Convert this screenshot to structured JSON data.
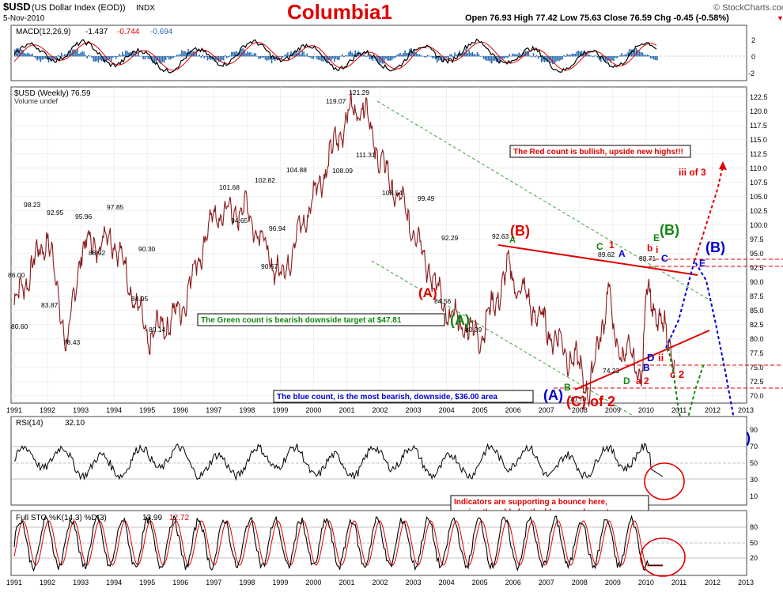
{
  "header": {
    "symbol": "$USD",
    "name": "(US Dollar Index (EOD))",
    "exchange": "INDX",
    "date": "5-Nov-2010",
    "title": "Columbia1",
    "ohlc": "Open 76.93  High 77.42  Low 75.63  Close 76.59  Chg -0.45 (-0.58%)",
    "watermark": "© StockCharts.com"
  },
  "macd": {
    "label": "MACD(12,26,9)",
    "v1": "-1.437",
    "v2": "-0.744",
    "v3": "-0.694",
    "ticks": [
      "2",
      "0",
      "-2"
    ]
  },
  "price": {
    "label": "$USD (Weekly) 76.59",
    "volume_label": "Volume undef",
    "y_ticks": [
      "122.5",
      "120.0",
      "117.5",
      "115.0",
      "112.5",
      "110.0",
      "107.5",
      "105.0",
      "102.5",
      "100.0",
      "97.5",
      "95.0",
      "92.5",
      "90.0",
      "87.5",
      "85.0",
      "82.5",
      "80.0",
      "77.5",
      "75.0",
      "72.5",
      "70.0"
    ],
    "point_labels": [
      {
        "t": "98.23"
      },
      {
        "t": "92.95"
      },
      {
        "t": "95.96"
      },
      {
        "t": "97.85"
      },
      {
        "t": "86.00"
      },
      {
        "t": "88.92"
      },
      {
        "t": "90.30"
      },
      {
        "t": "83.87"
      },
      {
        "t": "80.60"
      },
      {
        "t": "78.43"
      },
      {
        "t": "84.95"
      },
      {
        "t": "80.14"
      },
      {
        "t": "101.68"
      },
      {
        "t": "94.65"
      },
      {
        "t": "102.82"
      },
      {
        "t": "90.57"
      },
      {
        "t": "104.88"
      },
      {
        "t": "96.94"
      },
      {
        "t": "119.07"
      },
      {
        "t": "121.29"
      },
      {
        "t": "108.09"
      },
      {
        "t": "111.31"
      },
      {
        "t": "103.54"
      },
      {
        "t": "99.49"
      },
      {
        "t": "92.29"
      },
      {
        "t": "84.56"
      },
      {
        "t": "92.63"
      },
      {
        "t": "80.39"
      },
      {
        "t": "89.62"
      },
      {
        "t": "88.71"
      },
      {
        "t": "74.23"
      },
      {
        "t": "70.70"
      }
    ]
  },
  "annotations": {
    "red_box": "The Red count is bullish, upside new highs!!!",
    "green_box": "The Green count is bearish downside target at $47.81",
    "blue_box": "The blue count, is the most bearish, downside, $36.00 area",
    "indicator_box_1": "Indicators are supporting a bounce here,",
    "indicator_box_2": "upping the odds for the blue or red count",
    "waves": [
      {
        "t": "(B)"
      },
      {
        "t": "(A)"
      },
      {
        "t": "(A)"
      },
      {
        "t": "A"
      },
      {
        "t": "C"
      },
      {
        "t": "1"
      },
      {
        "t": "A"
      },
      {
        "t": "b"
      },
      {
        "t": "i"
      },
      {
        "t": "E"
      },
      {
        "t": "(B)"
      },
      {
        "t": "C"
      },
      {
        "t": "(B)"
      },
      {
        "t": "E"
      },
      {
        "t": "iii of 3"
      },
      {
        "t": "D"
      },
      {
        "t": "ii"
      },
      {
        "t": "c 2"
      },
      {
        "t": "B"
      },
      {
        "t": "a 2"
      },
      {
        "t": "D"
      },
      {
        "t": "B"
      },
      {
        "t": "(A)"
      },
      {
        "t": "(C) of 2"
      },
      {
        "t": "(C)"
      },
      {
        "t": "(C)"
      }
    ]
  },
  "x_axis": {
    "years": [
      "1991",
      "1992",
      "1993",
      "1994",
      "1995",
      "1996",
      "1997",
      "1998",
      "1999",
      "2000",
      "2001",
      "2002",
      "2003",
      "2004",
      "2005",
      "2006",
      "2007",
      "2008",
      "2009",
      "2010",
      "2011",
      "2012",
      "2013"
    ]
  },
  "rsi": {
    "label": "RSI(14)",
    "value": "32.10",
    "ticks": [
      "90",
      "70",
      "50",
      "30",
      "10"
    ]
  },
  "sto": {
    "label": "Full STO %K(14,3) %D(3)",
    "k": "13.99",
    "d": "12.72",
    "ticks": [
      "80",
      "50",
      "20"
    ]
  },
  "colors": {
    "red": "#e00000",
    "green": "#118811",
    "blue": "#0000cc",
    "price": "#8b1a1a",
    "macd_hist": "#2b6cb0"
  },
  "chart_data": {
    "type": "line",
    "title": "Columbia1",
    "series": [
      {
        "name": "$USD (Weekly)",
        "x": [
          "1991",
          "1992",
          "1992.6",
          "1993",
          "1994",
          "1995",
          "1996",
          "1997",
          "1998",
          "1999",
          "2000",
          "2001",
          "2001.5",
          "2002",
          "2003",
          "2004",
          "2005",
          "2005.9",
          "2006",
          "2007",
          "2008",
          "2008.3",
          "2008.9",
          "2009",
          "2009.9",
          "2010",
          "2010.5",
          "2010.85"
        ],
        "values": [
          86.0,
          98.23,
          78.43,
          95.96,
          97.85,
          80.14,
          84.95,
          101.68,
          102.82,
          90.57,
          104.88,
          119.07,
          121.29,
          111.31,
          99.49,
          84.56,
          80.39,
          92.63,
          90.5,
          82.0,
          75.0,
          70.7,
          89.62,
          80.0,
          74.23,
          88.71,
          82.0,
          76.59
        ]
      }
    ],
    "ylim": [
      69,
      124
    ],
    "xlim": [
      1991,
      2013
    ],
    "y_ticks": [
      122.5,
      120.0,
      117.5,
      115.0,
      112.5,
      110.0,
      107.5,
      105.0,
      102.5,
      100.0,
      97.5,
      95.0,
      92.5,
      90.0,
      87.5,
      85.0,
      82.5,
      80.0,
      77.5,
      75.0,
      72.5,
      70.0
    ]
  }
}
